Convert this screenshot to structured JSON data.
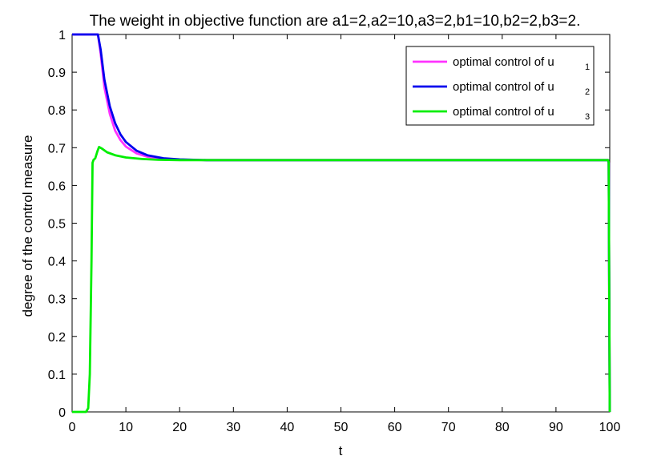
{
  "chart_data": {
    "type": "line",
    "title": "The weight in objective function are a1=2,a2=10,a3=2,b1=10,b2=2,b3=2.",
    "xlabel": "t",
    "ylabel": "degree of the control measure",
    "xlim": [
      0,
      100
    ],
    "ylim": [
      0,
      1
    ],
    "xticks": [
      "0",
      "10",
      "20",
      "30",
      "40",
      "50",
      "60",
      "70",
      "80",
      "90",
      "100"
    ],
    "yticks": [
      "0",
      "0.1",
      "0.2",
      "0.3",
      "0.4",
      "0.5",
      "0.6",
      "0.7",
      "0.8",
      "0.9",
      "1"
    ],
    "grid": false,
    "legend_position": "top-right",
    "series": [
      {
        "name": "optimal control of u",
        "subscript": "1",
        "color": "#ff33ff",
        "x": [
          0,
          4.8,
          5.3,
          6,
          7,
          8,
          9,
          10,
          12,
          14,
          17,
          20,
          25,
          30,
          50,
          80,
          99.7,
          99.8,
          100
        ],
        "y": [
          1,
          1,
          0.95,
          0.86,
          0.79,
          0.745,
          0.72,
          0.703,
          0.685,
          0.676,
          0.671,
          0.668,
          0.667,
          0.667,
          0.667,
          0.667,
          0.667,
          0.66,
          0.0
        ]
      },
      {
        "name": "optimal control of u",
        "subscript": "2",
        "color": "#0000ee",
        "x": [
          0,
          4.8,
          5.3,
          6,
          7,
          8,
          9,
          10,
          12,
          14,
          17,
          20,
          25,
          30,
          50,
          80,
          99.7,
          99.8,
          100
        ],
        "y": [
          1,
          1,
          0.96,
          0.88,
          0.81,
          0.765,
          0.735,
          0.715,
          0.692,
          0.68,
          0.672,
          0.669,
          0.667,
          0.667,
          0.667,
          0.667,
          0.667,
          0.66,
          0.0
        ]
      },
      {
        "name": "optimal control of u",
        "subscript": "3",
        "color": "#00ee00",
        "x": [
          0,
          2.6,
          3.0,
          3.3,
          3.6,
          3.8,
          4.0,
          4.3,
          4.7,
          5.0,
          5.5,
          6.5,
          8,
          10,
          13,
          16,
          20,
          25,
          30,
          50,
          80,
          99.7,
          99.8,
          100
        ],
        "y": [
          0,
          0,
          0.01,
          0.1,
          0.4,
          0.66,
          0.668,
          0.672,
          0.69,
          0.702,
          0.698,
          0.688,
          0.68,
          0.674,
          0.67,
          0.668,
          0.667,
          0.667,
          0.667,
          0.667,
          0.667,
          0.667,
          0.66,
          0.0
        ]
      }
    ]
  }
}
